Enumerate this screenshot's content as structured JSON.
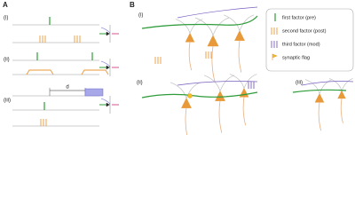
{
  "panels": {
    "A": {
      "label": "A",
      "rows": [
        "(i)",
        "(ii)",
        "(iii)"
      ],
      "distance_label": "d"
    },
    "B": {
      "label": "B",
      "rows": [
        "(i)",
        "(ii)",
        "(iii)"
      ],
      "legend": [
        "first factor (pre)",
        "second factor (post)",
        "third factor (mod)",
        "synaptic flag"
      ]
    }
  }
}
